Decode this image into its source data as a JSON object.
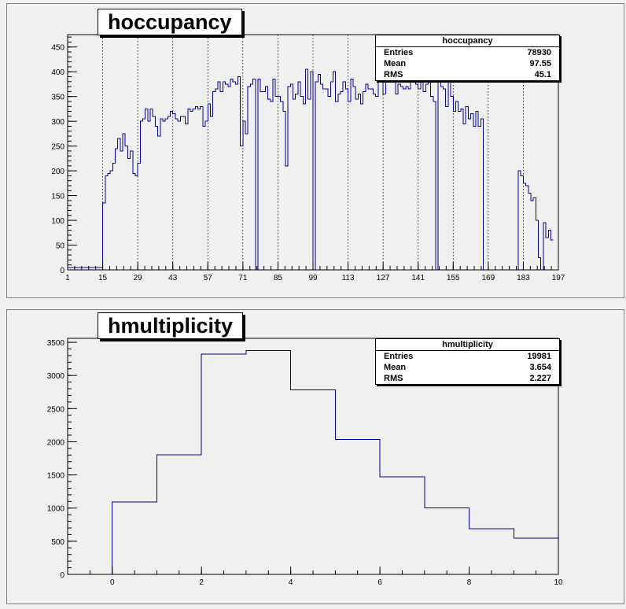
{
  "chart_data": [
    {
      "type": "bar",
      "title": "hoccupancy",
      "xlim": [
        1,
        197
      ],
      "ylim": [
        0,
        475
      ],
      "xticks": [
        1,
        15,
        29,
        43,
        57,
        71,
        85,
        99,
        113,
        127,
        141,
        155,
        169,
        183,
        197
      ],
      "yticks": [
        0,
        50,
        100,
        150,
        200,
        250,
        300,
        350,
        400,
        450
      ],
      "dashed_lines": [
        15,
        29,
        43,
        57,
        71,
        85,
        99,
        113,
        127,
        141,
        155,
        169,
        183
      ],
      "bin_width": 1,
      "values": [
        5,
        5,
        5,
        5,
        5,
        5,
        5,
        5,
        5,
        5,
        5,
        5,
        5,
        5,
        135,
        190,
        195,
        200,
        215,
        245,
        265,
        240,
        275,
        250,
        225,
        240,
        195,
        190,
        215,
        300,
        305,
        325,
        300,
        325,
        310,
        290,
        270,
        305,
        300,
        305,
        310,
        320,
        315,
        305,
        300,
        310,
        310,
        295,
        325,
        320,
        325,
        330,
        325,
        330,
        290,
        300,
        335,
        310,
        360,
        365,
        380,
        360,
        380,
        375,
        370,
        385,
        380,
        375,
        390,
        250,
        300,
        275,
        370,
        375,
        385,
        0,
        385,
        360,
        360,
        370,
        345,
        340,
        385,
        350,
        350,
        340,
        320,
        210,
        370,
        375,
        345,
        355,
        380,
        350,
        335,
        405,
        345,
        400,
        0,
        380,
        395,
        375,
        365,
        365,
        350,
        380,
        400,
        340,
        355,
        360,
        380,
        365,
        340,
        385,
        370,
        345,
        355,
        335,
        360,
        375,
        365,
        365,
        355,
        350,
        400,
        390,
        355,
        380,
        395,
        385,
        395,
        355,
        375,
        370,
        365,
        370,
        365,
        380,
        380,
        375,
        365,
        400,
        360,
        375,
        380,
        350,
        340,
        0,
        385,
        370,
        365,
        330,
        390,
        350,
        320,
        340,
        320,
        325,
        295,
        330,
        305,
        315,
        290,
        320,
        290,
        305,
        0,
        0,
        0,
        0,
        0,
        0,
        0,
        0,
        0,
        0,
        0,
        0,
        0,
        0,
        200,
        190,
        175,
        170,
        155,
        140,
        145,
        100,
        25,
        0,
        95,
        65,
        80,
        60
      ],
      "stats": {
        "title": "hoccupancy",
        "entries": "78930",
        "mean": "97.55",
        "rms": "45.1"
      }
    },
    {
      "type": "bar",
      "title": "hmultiplicity",
      "xlim": [
        -1,
        10
      ],
      "ylim": [
        0,
        3560
      ],
      "xticks": [
        0,
        2,
        4,
        6,
        8,
        10
      ],
      "yticks": [
        0,
        500,
        1000,
        1500,
        2000,
        2500,
        3000,
        3500
      ],
      "bin_edges": [
        0,
        1,
        2,
        3,
        4,
        5,
        6,
        7,
        8,
        9,
        10
      ],
      "values": [
        1090,
        1805,
        3320,
        3375,
        2780,
        2035,
        1470,
        1005,
        690,
        545
      ],
      "stats": {
        "title": "hmultiplicity",
        "entries": "19981",
        "mean": "3.654",
        "rms": "2.227"
      }
    }
  ],
  "labels": {
    "entries": "Entries",
    "mean": "Mean",
    "rms": "RMS"
  },
  "colors": {
    "line": "#00009a",
    "frame_bg": "#f0f0f0"
  }
}
